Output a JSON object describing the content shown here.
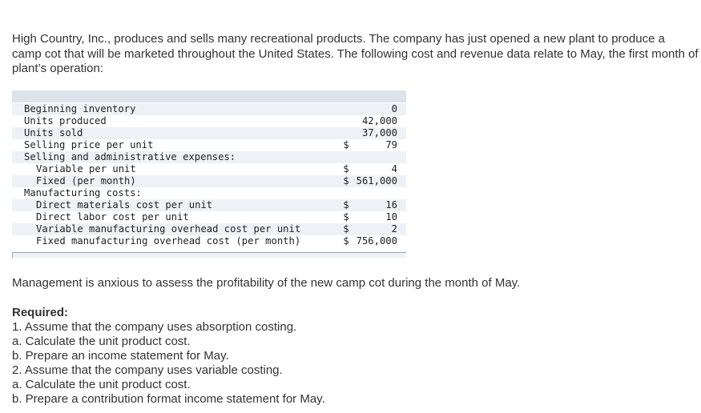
{
  "intro": {
    "lines": [
      "High Country, Inc., produces and sells many recreational products. The company has just opened a new plant to produce a",
      "camp cot that will be marketed throughout the United States. The following cost and revenue data relate to May, the first month of the",
      "plant’s operation:"
    ]
  },
  "data_table": {
    "rows": [
      {
        "label": "Beginning inventory",
        "currency": "",
        "value": "0"
      },
      {
        "label": "Units produced",
        "currency": "",
        "value": "42,000"
      },
      {
        "label": "Units sold",
        "currency": "",
        "value": "37,000"
      },
      {
        "label": "Selling price per unit",
        "currency": "$",
        "value": "79"
      },
      {
        "label": "Selling and administrative expenses:",
        "currency": "",
        "value": ""
      },
      {
        "label": "Variable per unit",
        "currency": "$",
        "value": "4"
      },
      {
        "label": "Fixed (per month)",
        "currency": "$",
        "value": "561,000"
      },
      {
        "label": "Manufacturing costs:",
        "currency": "",
        "value": ""
      },
      {
        "label": "Direct materials cost per unit",
        "currency": "$",
        "value": "16"
      },
      {
        "label": "Direct labor cost per unit",
        "currency": "$",
        "value": "10"
      },
      {
        "label": "Variable manufacturing overhead cost per unit",
        "currency": "$",
        "value": "2"
      },
      {
        "label": "Fixed manufacturing overhead cost (per month)",
        "currency": "$",
        "value": "756,000"
      }
    ]
  },
  "management_text": "Management is anxious to assess the profitability of the new camp cot during the month of May.",
  "required": {
    "title": "Required:",
    "items": [
      "1. Assume that the company uses absorption costing.",
      "a. Calculate the unit product cost.",
      "b. Prepare an income statement for May.",
      "2. Assume that the company uses variable costing.",
      "a. Calculate the unit product cost.",
      "b. Prepare a contribution format income statement for May."
    ]
  }
}
